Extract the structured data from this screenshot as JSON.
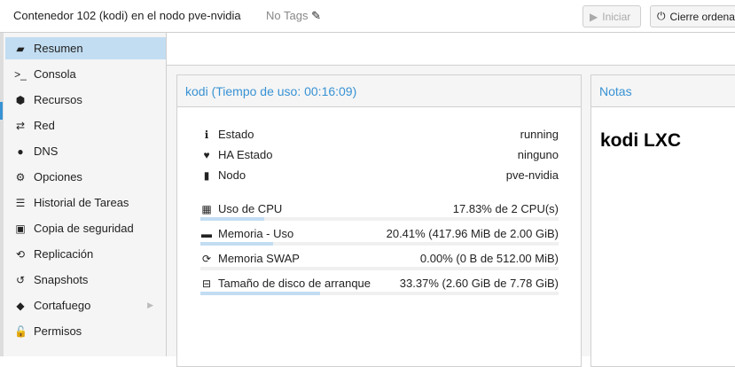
{
  "header": {
    "title": "Contenedor 102 (kodi) en el nodo pve-nvidia",
    "tags": "No Tags",
    "start_label": "Iniciar",
    "shutdown_label": "Cierre ordena"
  },
  "sidebar": {
    "items": [
      {
        "label": "Resumen",
        "icon": "book-icon",
        "glyph": "▰",
        "selected": true
      },
      {
        "label": "Consola",
        "icon": "terminal-icon",
        "glyph": ">_"
      },
      {
        "label": "Recursos",
        "icon": "cube-icon",
        "glyph": "⬢"
      },
      {
        "label": "Red",
        "icon": "exchange-icon",
        "glyph": "⇄"
      },
      {
        "label": "DNS",
        "icon": "globe-icon",
        "glyph": "●"
      },
      {
        "label": "Opciones",
        "icon": "gear-icon",
        "glyph": "⚙"
      },
      {
        "label": "Historial de Tareas",
        "icon": "list-icon",
        "glyph": "☰"
      },
      {
        "label": "Copia de seguridad",
        "icon": "floppy-icon",
        "glyph": "▣"
      },
      {
        "label": "Replicación",
        "icon": "retweet-icon",
        "glyph": "⟲"
      },
      {
        "label": "Snapshots",
        "icon": "history-icon",
        "glyph": "↺"
      },
      {
        "label": "Cortafuego",
        "icon": "shield-icon",
        "glyph": "◆",
        "expandable": true
      },
      {
        "label": "Permisos",
        "icon": "unlock-icon",
        "glyph": "🔓"
      }
    ]
  },
  "summary": {
    "title": "kodi (Tiempo de uso: 00:16:09)",
    "status": [
      {
        "label": "Estado",
        "value": "running",
        "icon": "info-icon",
        "glyph": "ℹ"
      },
      {
        "label": "HA Estado",
        "value": "ninguno",
        "icon": "heartbeat-icon",
        "glyph": "♥"
      },
      {
        "label": "Nodo",
        "value": "pve-nvidia",
        "icon": "server-icon",
        "glyph": "▮"
      }
    ],
    "usage": [
      {
        "label": "Uso de CPU",
        "value": "17.83% de 2 CPU(s)",
        "percent": 17.83,
        "icon": "cpu-icon",
        "glyph": "▦"
      },
      {
        "label": "Memoria - Uso",
        "value": "20.41% (417.96 MiB de 2.00 GiB)",
        "percent": 20.41,
        "icon": "memory-icon",
        "glyph": "▬"
      },
      {
        "label": "Memoria SWAP",
        "value": "0.00% (0 B de 512.00 MiB)",
        "percent": 0,
        "icon": "refresh-icon",
        "glyph": "⟳"
      },
      {
        "label": "Tamaño de disco de arranque",
        "value": "33.37% (2.60 GiB de 7.78 GiB)",
        "percent": 33.37,
        "icon": "hdd-icon",
        "glyph": "⊟"
      }
    ]
  },
  "notes": {
    "title": "Notas",
    "content": "kodi LXC"
  },
  "colors": {
    "accent": "#3892d4",
    "selected": "#c2ddf2"
  }
}
